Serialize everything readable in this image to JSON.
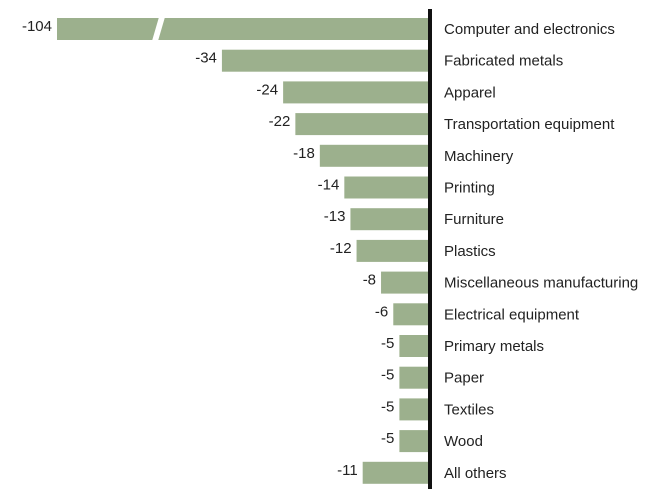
{
  "chart_data": {
    "type": "bar",
    "orientation": "horizontal",
    "categories": [
      "Computer and electronics",
      "Fabricated metals",
      "Apparel",
      "Transportation equipment",
      "Machinery",
      "Printing",
      "Furniture",
      "Plastics",
      "Miscellaneous manufacturing",
      "Electrical equipment",
      "Primary metals",
      "Paper",
      "Textiles",
      "Wood",
      "All others"
    ],
    "values": [
      -104,
      -34,
      -24,
      -22,
      -18,
      -14,
      -13,
      -12,
      -8,
      -6,
      -5,
      -5,
      -5,
      -5,
      -11
    ],
    "color": "#9cb08d"
  }
}
